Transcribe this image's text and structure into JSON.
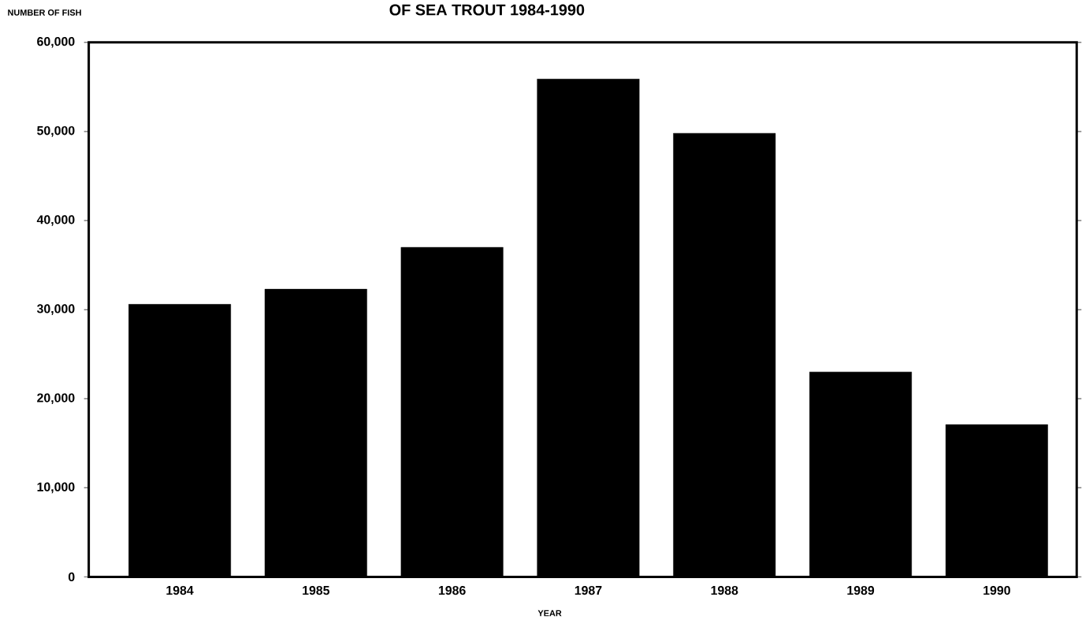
{
  "chart_data": {
    "type": "bar",
    "title": "OF SEA TROUT 1984-1990",
    "xlabel": "YEAR",
    "ylabel": "NUMBER OF FISH",
    "categories": [
      "1984",
      "1985",
      "1986",
      "1987",
      "1988",
      "1989",
      "1990"
    ],
    "values": [
      30600,
      32300,
      37000,
      55900,
      49800,
      23000,
      17100
    ],
    "color": "#000000",
    "ylim": [
      0,
      60000
    ],
    "yticks": [
      0,
      {
        "value": 10000,
        "label": "10,000"
      },
      {
        "value": 20000,
        "label": "20,000"
      },
      {
        "value": 30000,
        "label": "30,000"
      },
      {
        "value": 40000,
        "label": "40,000"
      },
      {
        "value": 50000,
        "label": "50,000"
      },
      {
        "value": 60000,
        "label": "60,000"
      }
    ]
  }
}
